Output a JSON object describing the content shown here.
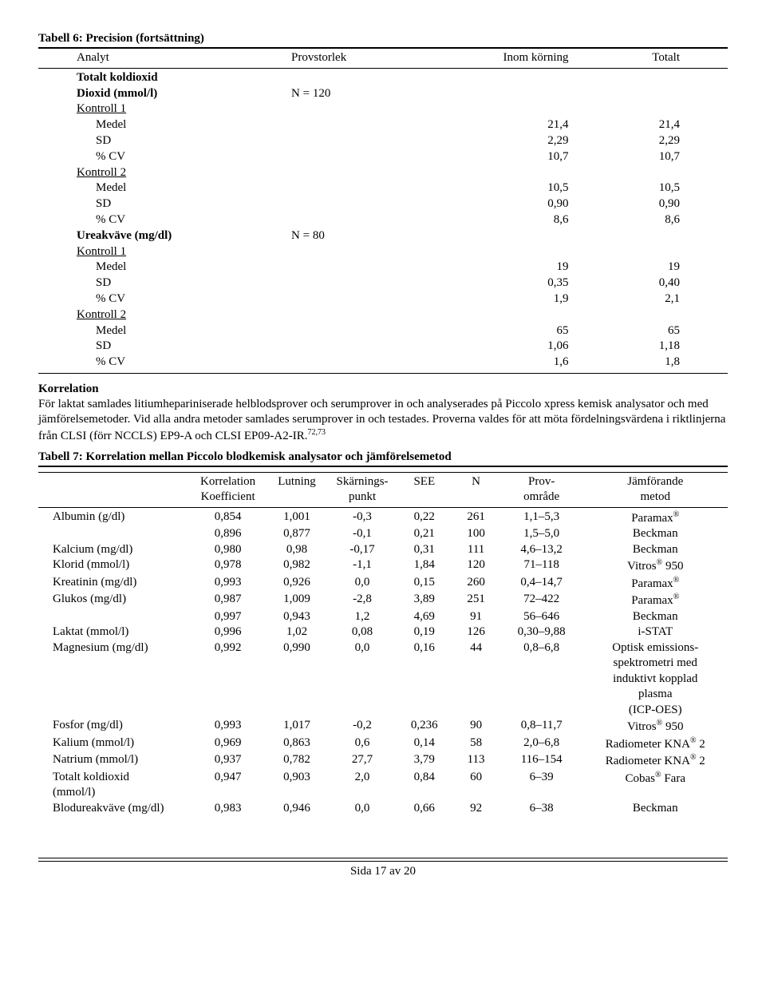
{
  "tbl6": {
    "title": "Tabell 6: Precision (fortsättning)",
    "hdr": [
      "Analyt",
      "Provstorlek",
      "Inom körning",
      "Totalt"
    ],
    "groups": [
      {
        "header": {
          "label": "Totalt koldioxid",
          "underline": false,
          "provstorlek": ""
        },
        "sub": {
          "label": "Dioxid (mmol/l)",
          "provstorlek": "N = 120"
        },
        "controls": [
          {
            "name": "Kontroll 1",
            "rows": [
              {
                "l": "Medel",
                "a": "21,4",
                "b": "21,4"
              },
              {
                "l": "SD",
                "a": "2,29",
                "b": "2,29"
              },
              {
                "l": "% CV",
                "a": "10,7",
                "b": "10,7"
              }
            ]
          },
          {
            "name": "Kontroll 2",
            "rows": [
              {
                "l": "Medel",
                "a": "10,5",
                "b": "10,5"
              },
              {
                "l": "SD",
                "a": "0,90",
                "b": "0,90"
              },
              {
                "l": "% CV",
                "a": "8,6",
                "b": "8,6"
              }
            ]
          }
        ]
      },
      {
        "header": {
          "label": "Ureakväve (mg/dl)",
          "underline": false,
          "provstorlek": "N = 80"
        },
        "controls": [
          {
            "name": "Kontroll 1",
            "rows": [
              {
                "l": "Medel",
                "a": "19",
                "b": "19"
              },
              {
                "l": "SD",
                "a": "0,35",
                "b": "0,40"
              },
              {
                "l": "% CV",
                "a": "1,9",
                "b": "2,1"
              }
            ]
          },
          {
            "name": "Kontroll 2",
            "rows": [
              {
                "l": "Medel",
                "a": "65",
                "b": "65"
              },
              {
                "l": "SD",
                "a": "1,06",
                "b": "1,18"
              },
              {
                "l": "% CV",
                "a": "1,6",
                "b": "1,8"
              }
            ]
          }
        ]
      }
    ]
  },
  "korr": {
    "heading": "Korrelation",
    "body": "För laktat samlades litiumhepariniserade helblodsprover och serumprover in och analyserades på Piccolo xpress kemisk analysator och med jämförelsemetoder. Vid alla andra metoder samlades serumprover in och testades. Proverna valdes för att möta fördelningsvärdena i riktlinjerna från CLSI (förr NCCLS) EP9-A och CLSI EP09-A2-IR.",
    "sup": "72,73"
  },
  "tbl7": {
    "title": "Tabell 7: Korrelation mellan Piccolo blodkemisk analysator och jämförelsemetod",
    "hdr1": [
      "",
      "Korrelation",
      "Lutning",
      "Skärnings-",
      "SEE",
      "N",
      "Prov-",
      "Jämförande"
    ],
    "hdr2": [
      "",
      "Koefficient",
      "",
      "punkt",
      "",
      "",
      "område",
      "metod"
    ],
    "rows": [
      {
        "c": [
          "Albumin (g/dl)",
          "0,854",
          "1,001",
          "-0,3",
          "0,22",
          "261",
          "1,1–5,3",
          "Paramax"
        ],
        "sup": "®"
      },
      {
        "c": [
          "",
          "0,896",
          "0,877",
          "-0,1",
          "0,21",
          "100",
          "1,5–5,0",
          "Beckman"
        ],
        "sup": ""
      },
      {
        "c": [
          "Kalcium (mg/dl)",
          "0,980",
          "0,98",
          "-0,17",
          "0,31",
          "111",
          "4,6–13,2",
          "Beckman"
        ],
        "sup": ""
      },
      {
        "c": [
          "Klorid (mmol/l)",
          "0,978",
          "0,982",
          "-1,1",
          "1,84",
          "120",
          "71–118",
          "Vitros"
        ],
        "sup": "®",
        "suffix": " 950"
      },
      {
        "c": [
          "Kreatinin (mg/dl)",
          "0,993",
          "0,926",
          "0,0",
          "0,15",
          "260",
          "0,4–14,7",
          "Paramax"
        ],
        "sup": "®"
      },
      {
        "c": [
          "Glukos (mg/dl)",
          "0,987",
          "1,009",
          "-2,8",
          "3,89",
          "251",
          "72–422",
          "Paramax"
        ],
        "sup": "®"
      },
      {
        "c": [
          "",
          "0,997",
          "0,943",
          "1,2",
          "4,69",
          "91",
          "56–646",
          "Beckman"
        ],
        "sup": ""
      },
      {
        "c": [
          "Laktat (mmol/l)",
          "0,996",
          "1,02",
          "0,08",
          "0,19",
          "126",
          "0,30–9,88",
          "i-STAT"
        ],
        "sup": ""
      },
      {
        "c": [
          "Magnesium (mg/dl)",
          "0,992",
          "0,990",
          "0,0",
          "0,16",
          "44",
          "0,8–6,8",
          "Optisk emissions-\nspektrometri med\ninduktivt kopplad\nplasma\n(ICP-OES)"
        ],
        "sup": ""
      },
      {
        "c": [
          "Fosfor (mg/dl)",
          "0,993",
          "1,017",
          "-0,2",
          "0,236",
          "90",
          "0,8–11,7",
          "Vitros"
        ],
        "sup": "®",
        "suffix": " 950"
      },
      {
        "c": [
          "Kalium (mmol/l)",
          "0,969",
          "0,863",
          "0,6",
          "0,14",
          "58",
          "2,0–6,8",
          "Radiometer KNA"
        ],
        "sup": "®",
        "suffix": " 2"
      },
      {
        "c": [
          "Natrium (mmol/l)",
          "0,937",
          "0,782",
          "27,7",
          "3,79",
          "113",
          "116–154",
          "Radiometer KNA"
        ],
        "sup": "®",
        "suffix": " 2"
      },
      {
        "c": [
          "Totalt koldioxid\n(mmol/l)",
          "0,947",
          "0,903",
          "2,0",
          "0,84",
          "60",
          "6–39",
          "Cobas"
        ],
        "sup": "®",
        "suffix": " Fara"
      },
      {
        "c": [
          "Blodureakväve (mg/dl)",
          "0,983",
          "0,946",
          "0,0",
          "0,66",
          "92",
          "6–38",
          "Beckman"
        ],
        "sup": ""
      }
    ]
  },
  "footer": "Sida 17 av 20"
}
